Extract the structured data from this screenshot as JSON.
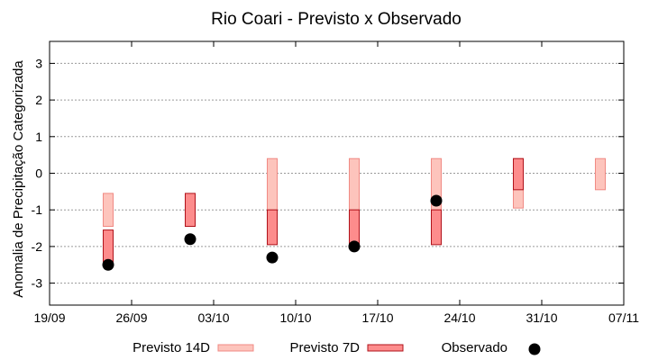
{
  "chart_data": {
    "type": "bar",
    "title": "Rio Coari - Previsto x Observado",
    "xlabel": "",
    "ylabel": "Anomalia de Precipitação Categorizada",
    "x_ticks": [
      {
        "date": "2021-09-19",
        "label": "19/09"
      },
      {
        "date": "2021-09-26",
        "label": "26/09"
      },
      {
        "date": "2021-10-03",
        "label": "03/10"
      },
      {
        "date": "2021-10-10",
        "label": "10/10"
      },
      {
        "date": "2021-10-17",
        "label": "17/10"
      },
      {
        "date": "2021-10-24",
        "label": "24/10"
      },
      {
        "date": "2021-10-31",
        "label": "31/10"
      },
      {
        "date": "2021-11-07",
        "label": "07/11"
      }
    ],
    "xlim": [
      "2021-09-19",
      "2021-11-07"
    ],
    "ylim": [
      -3.6,
      3.6
    ],
    "y_ticks": [
      3,
      2,
      1,
      0,
      -1,
      -2,
      -3
    ],
    "grid": true,
    "legend_position": "bottom",
    "legend": [
      {
        "label": "Previsto 14D",
        "kind": "bar",
        "fill": "#fdc4bc",
        "stroke": "#f08a84"
      },
      {
        "label": "Previsto 7D",
        "kind": "bar",
        "fill": "#fd8c8c",
        "stroke": "#b0121a"
      },
      {
        "label": "Observado",
        "kind": "point",
        "fill": "#000000"
      }
    ],
    "series": [
      {
        "name": "Previsto 14D",
        "fill": "#fdc4bc",
        "stroke": "#f08a84",
        "data": [
          {
            "x": "2021-09-24",
            "low": -1.45,
            "high": -0.55
          },
          {
            "x": "2021-10-08",
            "low": -1.0,
            "high": 0.4
          },
          {
            "x": "2021-10-15",
            "low": -1.0,
            "high": 0.4
          },
          {
            "x": "2021-10-22",
            "low": -1.0,
            "high": 0.4
          },
          {
            "x": "2021-10-29",
            "low": -0.95,
            "high": 0.4
          },
          {
            "x": "2021-11-05",
            "low": -0.45,
            "high": 0.4
          }
        ]
      },
      {
        "name": "Previsto 7D",
        "fill": "#fd8c8c",
        "stroke": "#b0121a",
        "data": [
          {
            "x": "2021-09-24",
            "low": -2.45,
            "high": -1.55
          },
          {
            "x": "2021-10-01",
            "low": -1.45,
            "high": -0.55
          },
          {
            "x": "2021-10-08",
            "low": -1.95,
            "high": -1.0
          },
          {
            "x": "2021-10-15",
            "low": -1.95,
            "high": -1.0
          },
          {
            "x": "2021-10-22",
            "low": -1.95,
            "high": -1.0
          },
          {
            "x": "2021-10-29",
            "low": -0.45,
            "high": 0.4
          }
        ]
      },
      {
        "name": "Observado",
        "fill": "#000000",
        "points": [
          {
            "x": "2021-09-24",
            "y": -2.5
          },
          {
            "x": "2021-10-01",
            "y": -1.8
          },
          {
            "x": "2021-10-08",
            "y": -2.3
          },
          {
            "x": "2021-10-15",
            "y": -2.0
          },
          {
            "x": "2021-10-22",
            "y": -0.75
          }
        ]
      }
    ]
  }
}
